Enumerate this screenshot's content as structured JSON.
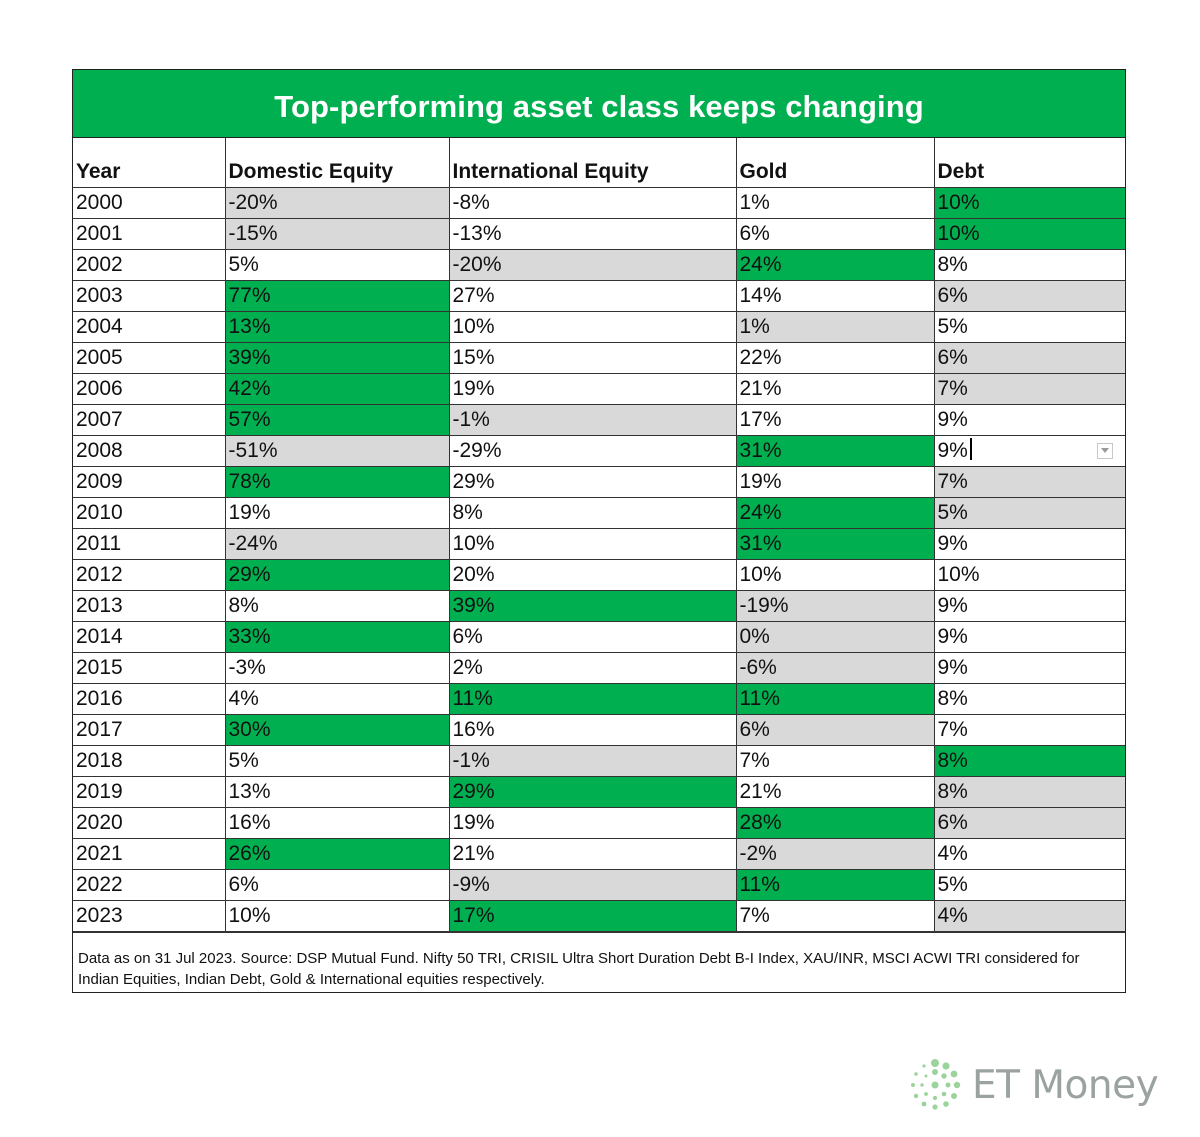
{
  "title": "Top-performing asset class keeps changing",
  "columns": [
    "Year",
    "Domestic Equity",
    "International Equity",
    "Gold",
    "Debt"
  ],
  "colors": {
    "best": "#00b050",
    "worst": "#d9d9d9",
    "title_bg": "#00b050"
  },
  "rows": [
    {
      "year": "2000",
      "values": [
        "-20%",
        "-8%",
        "1%",
        "10%"
      ],
      "best": 3,
      "worst": 0
    },
    {
      "year": "2001",
      "values": [
        "-15%",
        "-13%",
        "6%",
        "10%"
      ],
      "best": 3,
      "worst": 0
    },
    {
      "year": "2002",
      "values": [
        "5%",
        "-20%",
        "24%",
        "8%"
      ],
      "best": 2,
      "worst": 1
    },
    {
      "year": "2003",
      "values": [
        "77%",
        "27%",
        "14%",
        "6%"
      ],
      "best": 0,
      "worst": 3
    },
    {
      "year": "2004",
      "values": [
        "13%",
        "10%",
        "1%",
        "5%"
      ],
      "best": 0,
      "worst": 2
    },
    {
      "year": "2005",
      "values": [
        "39%",
        "15%",
        "22%",
        "6%"
      ],
      "best": 0,
      "worst": 3
    },
    {
      "year": "2006",
      "values": [
        "42%",
        "19%",
        "21%",
        "7%"
      ],
      "best": 0,
      "worst": 3
    },
    {
      "year": "2007",
      "values": [
        "57%",
        "-1%",
        "17%",
        "9%"
      ],
      "best": 0,
      "worst": 1
    },
    {
      "year": "2008",
      "values": [
        "-51%",
        "-29%",
        "31%",
        "9%"
      ],
      "best": 2,
      "worst": 0
    },
    {
      "year": "2009",
      "values": [
        "78%",
        "29%",
        "19%",
        "7%"
      ],
      "best": 0,
      "worst": 3
    },
    {
      "year": "2010",
      "values": [
        "19%",
        "8%",
        "24%",
        "5%"
      ],
      "best": 2,
      "worst": 3
    },
    {
      "year": "2011",
      "values": [
        "-24%",
        "10%",
        "31%",
        "9%"
      ],
      "best": 2,
      "worst": 0
    },
    {
      "year": "2012",
      "values": [
        "29%",
        "20%",
        "10%",
        "10%"
      ],
      "best": 0,
      "worst": null
    },
    {
      "year": "2013",
      "values": [
        "8%",
        "39%",
        "-19%",
        "9%"
      ],
      "best": 1,
      "worst": 2
    },
    {
      "year": "2014",
      "values": [
        "33%",
        "6%",
        "0%",
        "9%"
      ],
      "best": 0,
      "worst": 2
    },
    {
      "year": "2015",
      "values": [
        "-3%",
        "2%",
        "-6%",
        "9%"
      ],
      "best": null,
      "worst": 2
    },
    {
      "year": "2016",
      "values": [
        "4%",
        "11%",
        "11%",
        "8%"
      ],
      "best": [
        1,
        2
      ],
      "worst": null
    },
    {
      "year": "2017",
      "values": [
        "30%",
        "16%",
        "6%",
        "7%"
      ],
      "best": 0,
      "worst": 2
    },
    {
      "year": "2018",
      "values": [
        "5%",
        "-1%",
        "7%",
        "8%"
      ],
      "best": 3,
      "worst": 1
    },
    {
      "year": "2019",
      "values": [
        "13%",
        "29%",
        "21%",
        "8%"
      ],
      "best": 1,
      "worst": 3
    },
    {
      "year": "2020",
      "values": [
        "16%",
        "19%",
        "28%",
        "6%"
      ],
      "best": 2,
      "worst": 3
    },
    {
      "year": "2021",
      "values": [
        "26%",
        "21%",
        "-2%",
        "4%"
      ],
      "best": 0,
      "worst": 2
    },
    {
      "year": "2022",
      "values": [
        "6%",
        "-9%",
        "11%",
        "5%"
      ],
      "best": 2,
      "worst": 1
    },
    {
      "year": "2023",
      "values": [
        "10%",
        "17%",
        "7%",
        "4%"
      ],
      "best": 1,
      "worst": 3
    }
  ],
  "footnote": "Data as on 31 Jul 2023. Source: DSP Mutual Fund. Nifty 50 TRI, CRISIL Ultra Short Duration Debt B-I Index, XAU/INR, MSCI ACWI TRI considered for Indian Equities, Indian Debt, Gold & International equities respectively.",
  "brand": {
    "name": "ET Money",
    "logo_icon": "et-money-logo-icon"
  }
}
